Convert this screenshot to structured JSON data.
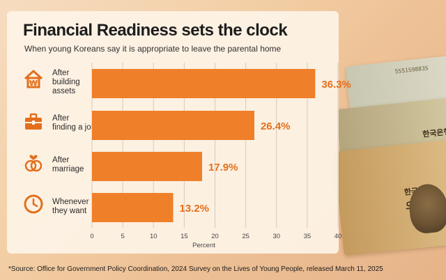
{
  "header": {
    "title": "Financial Readiness sets the clock",
    "subtitle": "When young Koreans say it is appropriate to leave the parental home"
  },
  "chart_data": {
    "type": "bar",
    "orientation": "horizontal",
    "categories": [
      [
        "After",
        "building",
        "assets"
      ],
      [
        "After",
        "finding a job"
      ],
      [
        "After",
        "marriage"
      ],
      [
        "Whenever",
        "they want"
      ]
    ],
    "values": [
      36.3,
      26.4,
      17.9,
      13.2
    ],
    "value_labels": [
      "36.3%",
      "26.4%",
      "17.9%",
      "13.2%"
    ],
    "category_icons": [
      "house-won-icon",
      "briefcase-icon",
      "wedding-rings-icon",
      "clock-icon"
    ],
    "xlabel": "Percent",
    "xlim": [
      0,
      40
    ],
    "xticks": [
      0,
      5,
      10,
      15,
      20,
      25,
      30,
      35,
      40
    ],
    "bar_color": "#f07f2a",
    "label_color": "#e36f1c",
    "grid": true
  },
  "footer": {
    "source": "*Source: Office for Government Policy Coordination, 2024 Survey on the Lives of Young People, released March 11, 2025"
  },
  "background": {
    "note_text": [
      "한국은행",
      "오만원",
      "5S51S9883S",
      "한국은행",
      "오만원"
    ]
  }
}
